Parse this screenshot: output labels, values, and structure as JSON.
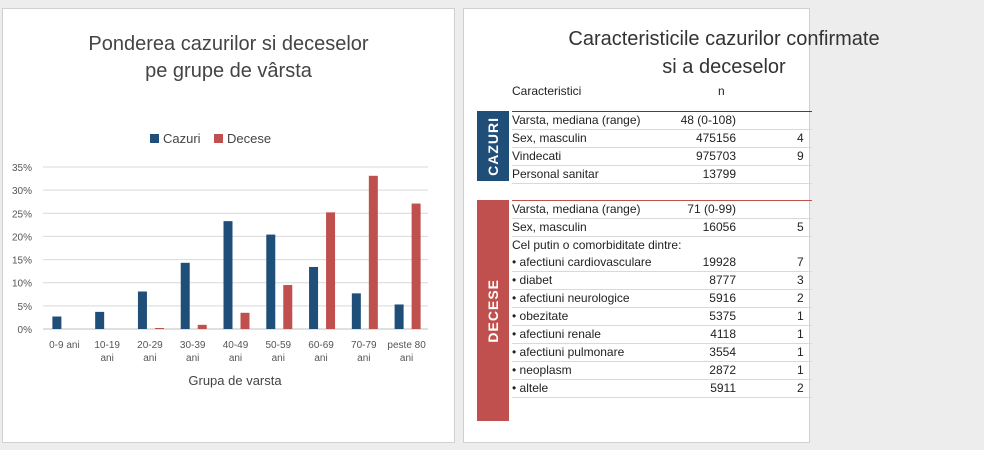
{
  "left": {
    "title_line1": "Ponderea cazurilor si deceselor",
    "title_line2": "pe grupe de vârsta"
  },
  "chart_data": {
    "type": "bar",
    "title": "Ponderea cazurilor si deceselor pe grupe de vârsta",
    "xlabel": "Grupa de varsta",
    "ylabel": "",
    "ylim": [
      0,
      35
    ],
    "yticks": [
      "0%",
      "5%",
      "10%",
      "15%",
      "20%",
      "25%",
      "30%",
      "35%"
    ],
    "grid": true,
    "legend_position": "top",
    "categories": [
      [
        "0-9 ani"
      ],
      [
        "10-19",
        "ani"
      ],
      [
        "20-29",
        "ani"
      ],
      [
        "30-39",
        "ani"
      ],
      [
        "40-49",
        "ani"
      ],
      [
        "50-59",
        "ani"
      ],
      [
        "60-69",
        "ani"
      ],
      [
        "70-79",
        "ani"
      ],
      [
        "peste 80",
        "ani"
      ]
    ],
    "series": [
      {
        "name": "Cazuri",
        "color": "#1f4e79",
        "values": [
          2.7,
          3.7,
          8.1,
          14.3,
          23.3,
          20.4,
          13.4,
          7.7,
          5.3
        ]
      },
      {
        "name": "Decese",
        "color": "#c0504d",
        "values": [
          0.0,
          0.0,
          0.2,
          0.9,
          3.5,
          9.5,
          25.2,
          33.1,
          27.1
        ]
      }
    ]
  },
  "right": {
    "title_line1": "Caracteristicile cazurilor confirmate",
    "title_line2": "si a deceselor",
    "header_label": "Caracteristici",
    "header_n": "n",
    "cazuri_label": "CAZURI",
    "decese_label": "DECESE",
    "cazuri_rows": [
      {
        "label": "Varsta, mediana (range)",
        "value": "48 (0-108)",
        "frag": ""
      },
      {
        "label": "Sex, masculin",
        "value": "475156",
        "frag": "4"
      },
      {
        "label": "Vindecati",
        "value": "975703",
        "frag": "9"
      },
      {
        "label": "Personal sanitar",
        "value": "13799",
        "frag": ""
      }
    ],
    "decese_rows": [
      {
        "label": "Varsta, mediana (range)",
        "value": "71 (0-99)",
        "frag": ""
      },
      {
        "label": "Sex, masculin",
        "value": "16056",
        "frag": "5"
      },
      {
        "label": "Cel putin o comorbiditate dintre:",
        "value": "",
        "frag": ""
      },
      {
        "label": "• afectiuni cardiovasculare",
        "value": "19928",
        "frag": "7"
      },
      {
        "label": "• diabet",
        "value": "8777",
        "frag": "3"
      },
      {
        "label": "• afectiuni neurologice",
        "value": "5916",
        "frag": "2"
      },
      {
        "label": "• obezitate",
        "value": "5375",
        "frag": "1"
      },
      {
        "label": "• afectiuni renale",
        "value": "4118",
        "frag": "1"
      },
      {
        "label": "• afectiuni pulmonare",
        "value": "3554",
        "frag": "1"
      },
      {
        "label": "• neoplasm",
        "value": "2872",
        "frag": "1"
      },
      {
        "label": "• altele",
        "value": "5911",
        "frag": "2"
      }
    ]
  }
}
